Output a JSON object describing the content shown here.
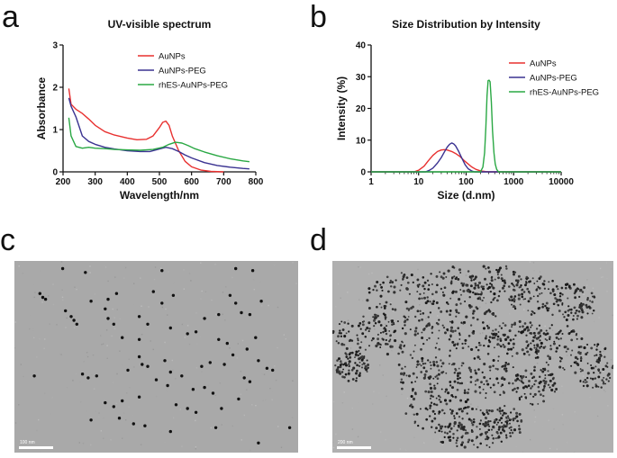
{
  "panels": {
    "a": "a",
    "b": "b",
    "c": "c",
    "d": "d"
  },
  "chart_data": [
    {
      "type": "line",
      "title": "UV-visible spectrum",
      "xlabel": "Wavelength/nm",
      "ylabel": "Absorbance",
      "xlim": [
        200,
        800
      ],
      "ylim": [
        0,
        3
      ],
      "xticks": [
        200,
        300,
        400,
        500,
        600,
        700,
        800
      ],
      "yticks": [
        0,
        1,
        2,
        3
      ],
      "grid": false,
      "legend": "top-right",
      "series": [
        {
          "name": "AuNPs",
          "color": "#e8302f",
          "x": [
            218,
            225,
            240,
            260,
            280,
            300,
            330,
            360,
            400,
            430,
            460,
            480,
            500,
            510,
            520,
            530,
            540,
            560,
            580,
            600,
            630,
            660,
            700
          ],
          "y": [
            1.97,
            1.6,
            1.48,
            1.38,
            1.25,
            1.1,
            0.95,
            0.87,
            0.8,
            0.76,
            0.77,
            0.85,
            1.05,
            1.17,
            1.2,
            1.1,
            0.85,
            0.5,
            0.25,
            0.12,
            0.04,
            0.01,
            0.0
          ]
        },
        {
          "name": "AuNPs-PEG",
          "color": "#3a3291",
          "x": [
            218,
            225,
            240,
            260,
            280,
            300,
            330,
            360,
            400,
            440,
            470,
            500,
            520,
            540,
            560,
            580,
            600,
            640,
            680,
            720,
            760,
            780
          ],
          "y": [
            1.75,
            1.55,
            1.3,
            0.85,
            0.72,
            0.65,
            0.58,
            0.54,
            0.5,
            0.48,
            0.48,
            0.54,
            0.58,
            0.55,
            0.48,
            0.4,
            0.33,
            0.22,
            0.15,
            0.11,
            0.08,
            0.07
          ]
        },
        {
          "name": "rhES-AuNPs-PEG",
          "color": "#2aa844",
          "x": [
            218,
            225,
            240,
            260,
            280,
            300,
            330,
            360,
            400,
            440,
            480,
            510,
            530,
            550,
            570,
            590,
            610,
            640,
            680,
            720,
            760,
            780
          ],
          "y": [
            1.28,
            0.85,
            0.6,
            0.56,
            0.58,
            0.56,
            0.55,
            0.53,
            0.52,
            0.51,
            0.53,
            0.58,
            0.65,
            0.7,
            0.68,
            0.62,
            0.55,
            0.47,
            0.38,
            0.31,
            0.26,
            0.24
          ]
        }
      ]
    },
    {
      "type": "line",
      "title": "Size Distribution by Intensity",
      "xlabel": "Size (d.nm)",
      "ylabel": "Intensity (%)",
      "xscale": "log",
      "xlim": [
        1,
        10000
      ],
      "ylim": [
        0,
        40
      ],
      "xticks": [
        1,
        10,
        100,
        1000,
        10000
      ],
      "xticklabels": [
        "1",
        "10",
        "100",
        "1000",
        "10000"
      ],
      "yticks": [
        0,
        10,
        20,
        30,
        40
      ],
      "grid": false,
      "legend": "top-right",
      "series": [
        {
          "name": "AuNPs",
          "color": "#e8302f",
          "x": [
            1,
            8,
            10,
            13,
            16,
            20,
            25,
            30,
            35,
            40,
            50,
            60,
            75,
            90,
            110,
            130,
            160,
            200,
            250,
            300,
            10000
          ],
          "y": [
            0,
            0,
            0.5,
            1.8,
            3.5,
            5.2,
            6.4,
            6.9,
            7.0,
            6.9,
            6.4,
            5.8,
            4.8,
            3.6,
            2.5,
            1.6,
            0.8,
            0.3,
            0.1,
            0,
            0
          ]
        },
        {
          "name": "AuNPs-PEG",
          "color": "#3a3291",
          "x": [
            1,
            14,
            17,
            20,
            25,
            30,
            35,
            40,
            45,
            50,
            55,
            60,
            70,
            80,
            95,
            110,
            130,
            150,
            10000
          ],
          "y": [
            0,
            0,
            0.5,
            1.2,
            2.8,
            4.5,
            6.3,
            7.8,
            8.7,
            9.1,
            8.8,
            8.2,
            6.4,
            4.5,
            2.3,
            1.0,
            0.3,
            0,
            0
          ]
        },
        {
          "name": "rhES-AuNPs-PEG",
          "color": "#2aa844",
          "x": [
            1,
            200,
            225,
            245,
            260,
            275,
            290,
            305,
            320,
            340,
            360,
            385,
            410,
            440,
            480,
            10000
          ],
          "y": [
            0,
            0,
            1.5,
            6,
            14,
            24,
            28.8,
            28.9,
            28.4,
            22,
            13,
            6,
            2.5,
            0.8,
            0,
            0
          ]
        }
      ]
    }
  ],
  "tem_c": {
    "scale_text": "100 nm",
    "particles": [
      [
        0.17,
        0.04
      ],
      [
        0.25,
        0.06
      ],
      [
        0.52,
        0.05
      ],
      [
        0.78,
        0.04
      ],
      [
        0.84,
        0.05
      ],
      [
        0.09,
        0.17
      ],
      [
        0.1,
        0.19
      ],
      [
        0.11,
        0.2
      ],
      [
        0.27,
        0.21
      ],
      [
        0.33,
        0.2
      ],
      [
        0.36,
        0.17
      ],
      [
        0.49,
        0.16
      ],
      [
        0.56,
        0.18
      ],
      [
        0.52,
        0.22
      ],
      [
        0.76,
        0.18
      ],
      [
        0.78,
        0.22
      ],
      [
        0.87,
        0.21
      ],
      [
        0.18,
        0.26
      ],
      [
        0.2,
        0.29
      ],
      [
        0.21,
        0.31
      ],
      [
        0.22,
        0.33
      ],
      [
        0.32,
        0.25
      ],
      [
        0.33,
        0.3
      ],
      [
        0.35,
        0.33
      ],
      [
        0.44,
        0.29
      ],
      [
        0.47,
        0.33
      ],
      [
        0.67,
        0.3
      ],
      [
        0.72,
        0.28
      ],
      [
        0.8,
        0.27
      ],
      [
        0.83,
        0.28
      ],
      [
        0.38,
        0.4
      ],
      [
        0.44,
        0.41
      ],
      [
        0.55,
        0.35
      ],
      [
        0.61,
        0.38
      ],
      [
        0.64,
        0.37
      ],
      [
        0.72,
        0.41
      ],
      [
        0.75,
        0.43
      ],
      [
        0.85,
        0.4
      ],
      [
        0.77,
        0.49
      ],
      [
        0.82,
        0.46
      ],
      [
        0.44,
        0.5
      ],
      [
        0.45,
        0.54
      ],
      [
        0.47,
        0.55
      ],
      [
        0.53,
        0.52
      ],
      [
        0.55,
        0.58
      ],
      [
        0.59,
        0.6
      ],
      [
        0.66,
        0.55
      ],
      [
        0.69,
        0.53
      ],
      [
        0.74,
        0.54
      ],
      [
        0.86,
        0.52
      ],
      [
        0.89,
        0.56
      ],
      [
        0.91,
        0.57
      ],
      [
        0.07,
        0.6
      ],
      [
        0.24,
        0.59
      ],
      [
        0.26,
        0.61
      ],
      [
        0.29,
        0.6
      ],
      [
        0.4,
        0.57
      ],
      [
        0.5,
        0.62
      ],
      [
        0.54,
        0.65
      ],
      [
        0.63,
        0.67
      ],
      [
        0.67,
        0.66
      ],
      [
        0.7,
        0.69
      ],
      [
        0.81,
        0.61
      ],
      [
        0.83,
        0.63
      ],
      [
        0.32,
        0.74
      ],
      [
        0.35,
        0.76
      ],
      [
        0.38,
        0.73
      ],
      [
        0.44,
        0.71
      ],
      [
        0.57,
        0.75
      ],
      [
        0.61,
        0.77
      ],
      [
        0.64,
        0.79
      ],
      [
        0.73,
        0.77
      ],
      [
        0.79,
        0.72
      ],
      [
        0.27,
        0.83
      ],
      [
        0.37,
        0.82
      ],
      [
        0.42,
        0.85
      ],
      [
        0.46,
        0.86
      ],
      [
        0.55,
        0.89
      ],
      [
        0.71,
        0.87
      ],
      [
        0.86,
        0.95
      ],
      [
        0.97,
        0.87
      ]
    ]
  },
  "tem_d": {
    "scale_text": "200 nm"
  }
}
